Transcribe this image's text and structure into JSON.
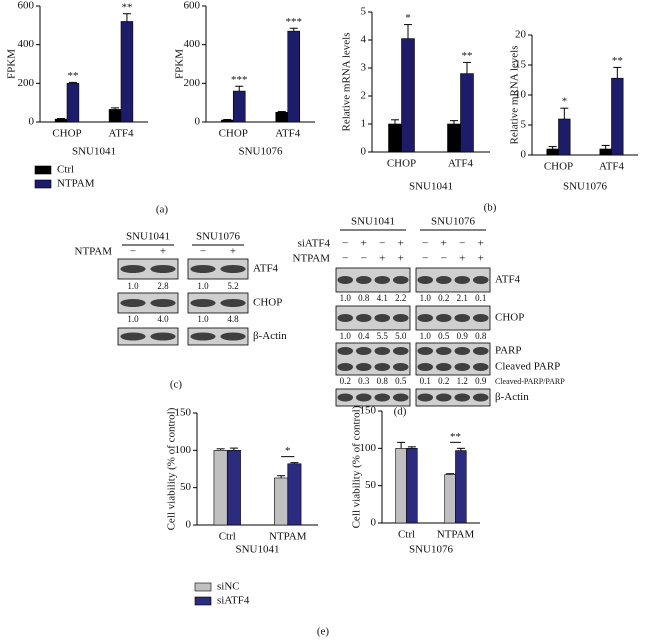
{
  "chart_data": [
    {
      "type": "bar",
      "ylabel": "FPKM",
      "xlabel": "SNU1041",
      "categories": [
        "CHOP",
        "ATF4"
      ],
      "ylim": [
        0,
        600
      ],
      "yticks": [
        0,
        200,
        400,
        600
      ],
      "legend": "below",
      "series": [
        {
          "name": "Ctrl",
          "color": "#000000",
          "values": [
            15,
            65
          ],
          "errors": [
            3,
            8
          ]
        },
        {
          "name": "NTPAM",
          "color": "#1c1c6b",
          "values": [
            200,
            520
          ],
          "errors": [
            5,
            40
          ],
          "annotations": [
            "**",
            "**"
          ]
        }
      ]
    },
    {
      "type": "bar",
      "ylabel": "FPKM",
      "xlabel": "SNU1076",
      "categories": [
        "CHOP",
        "ATF4"
      ],
      "ylim": [
        0,
        600
      ],
      "yticks": [
        0,
        200,
        400,
        600
      ],
      "series": [
        {
          "color": "#000000",
          "values": [
            10,
            50
          ],
          "errors": [
            3,
            4
          ]
        },
        {
          "color": "#1c1c6b",
          "values": [
            160,
            470
          ],
          "errors": [
            25,
            15
          ],
          "annotations": [
            "***",
            "***"
          ]
        }
      ]
    },
    {
      "type": "bar",
      "ylabel": "Relative mRNA levels",
      "xlabel": "SNU1041",
      "categories": [
        "CHOP",
        "ATF4"
      ],
      "ylim": [
        0,
        5
      ],
      "yticks": [
        0,
        1,
        2,
        3,
        4,
        5
      ],
      "series": [
        {
          "color": "#000000",
          "values": [
            1,
            1
          ],
          "errors": [
            0.15,
            0.12
          ]
        },
        {
          "color": "#1c1c6b",
          "values": [
            4.05,
            2.8
          ],
          "errors": [
            0.5,
            0.4
          ],
          "annotations": [
            "*",
            "**"
          ]
        }
      ]
    },
    {
      "type": "bar",
      "ylabel": "Relative mRNA levels",
      "xlabel": "SNU1076",
      "categories": [
        "CHOP",
        "ATF4"
      ],
      "ylim": [
        0,
        20
      ],
      "yticks": [
        0,
        5,
        10,
        15,
        20
      ],
      "series": [
        {
          "color": "#000000",
          "values": [
            1,
            1
          ],
          "errors": [
            0.4,
            0.6
          ]
        },
        {
          "color": "#1c1c6b",
          "values": [
            6,
            12.8
          ],
          "errors": [
            1.8,
            1.8
          ],
          "annotations": [
            "*",
            "**"
          ]
        }
      ]
    },
    {
      "type": "bar",
      "ylabel": "Cell viability (% of control)",
      "xlabel": "SNU1041",
      "categories": [
        "Ctrl",
        "NTPAM"
      ],
      "ylim": [
        0,
        150
      ],
      "yticks": [
        0,
        50,
        100,
        150
      ],
      "legend": "below",
      "significance": [
        null,
        "*"
      ],
      "series": [
        {
          "name": "siNC",
          "color": "#c0c0c0",
          "values": [
            100,
            63
          ],
          "errors": [
            2,
            3
          ]
        },
        {
          "name": "siATF4",
          "color": "#2b2b80",
          "values": [
            100,
            82
          ],
          "errors": [
            3,
            1.5
          ]
        }
      ]
    },
    {
      "type": "bar",
      "ylabel": "Cell viability (% of control)",
      "xlabel": "SNU1076",
      "categories": [
        "Ctrl",
        "NTPAM"
      ],
      "ylim": [
        0,
        150
      ],
      "yticks": [
        0,
        50,
        100,
        150
      ],
      "significance": [
        null,
        "**"
      ],
      "series": [
        {
          "color": "#c0c0c0",
          "values": [
            100,
            65
          ],
          "errors": [
            8,
            1
          ]
        },
        {
          "color": "#2b2b80",
          "values": [
            100,
            97
          ],
          "errors": [
            2,
            3
          ]
        }
      ]
    }
  ],
  "blot_c": {
    "groups": [
      "SNU1041",
      "SNU1076"
    ],
    "conditions": [
      {
        "label": "NTPAM",
        "signs": [
          "−",
          "+",
          "−",
          "+"
        ]
      }
    ],
    "rows": [
      {
        "labels": [
          "ATF4"
        ],
        "quant": [
          "1.0",
          "2.8",
          "1.0",
          "5.2"
        ]
      },
      {
        "labels": [
          "CHOP"
        ],
        "quant": [
          "1.0",
          "4.0",
          "1.0",
          "4.8"
        ]
      },
      {
        "labels": [
          "β-Actin"
        ]
      }
    ]
  },
  "blot_d": {
    "groups": [
      "SNU1041",
      "SNU1076"
    ],
    "conditions": [
      {
        "label": "siATF4",
        "signs": [
          "−",
          "+",
          "−",
          "+",
          "−",
          "+",
          "−",
          "+"
        ]
      },
      {
        "label": "NTPAM",
        "signs": [
          "−",
          "−",
          "+",
          "+",
          "−",
          "−",
          "+",
          "+"
        ]
      }
    ],
    "rows": [
      {
        "labels": [
          "ATF4"
        ],
        "quant": [
          "1.0",
          "0.8",
          "4.1",
          "2.2",
          "1.0",
          "0.2",
          "2.1",
          "0.1"
        ]
      },
      {
        "labels": [
          "CHOP"
        ],
        "quant": [
          "1.0",
          "0.4",
          "5.5",
          "5.0",
          "1.0",
          "0.5",
          "0.9",
          "0.8"
        ]
      },
      {
        "labels": [
          "PARP",
          "Cleaved PARP"
        ],
        "quant_label": "Cleaved-PARP/PARP",
        "quant": [
          "0.2",
          "0.3",
          "0.8",
          "0.5",
          "0.1",
          "0.2",
          "1.2",
          "0.9"
        ]
      },
      {
        "labels": [
          "β-Actin"
        ]
      }
    ]
  },
  "panel_labels": [
    "(a)",
    "(b)",
    "(c)",
    "(d)",
    "(e)"
  ]
}
